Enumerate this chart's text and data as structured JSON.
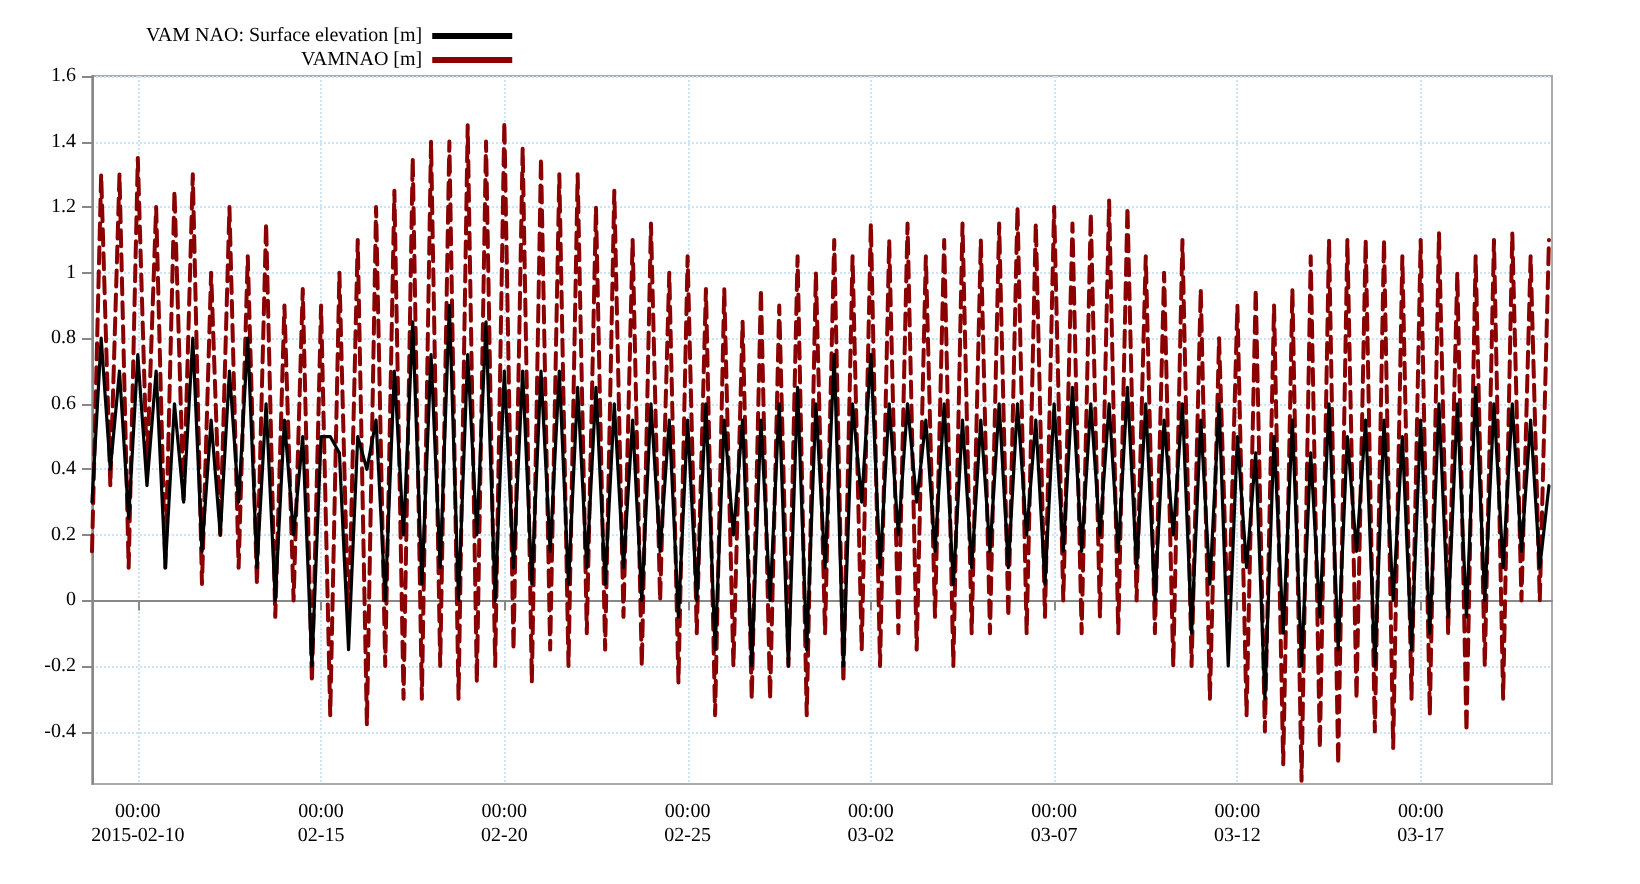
{
  "chart_data": {
    "type": "line",
    "legend": "top left",
    "grid": true,
    "marker": "none",
    "xlim": [
      "2015-02-08T18:00",
      "2015-03-20T14:00"
    ],
    "xticks": [
      {
        "value": "2015-02-10",
        "label": "00:00\n2015-02-10"
      },
      {
        "value": "2015-02-15",
        "label": "00:00\n02-15"
      },
      {
        "value": "2015-02-20",
        "label": "00:00\n02-20"
      },
      {
        "value": "2015-02-25",
        "label": "00:00\n02-25"
      },
      {
        "value": "2015-03-02",
        "label": "00:00\n03-02"
      },
      {
        "value": "2015-03-07",
        "label": "00:00\n03-07"
      },
      {
        "value": "2015-03-12",
        "label": "00:00\n03-12"
      },
      {
        "value": "2015-03-17",
        "label": "00:00\n03-17"
      }
    ],
    "ylim": [
      -0.56,
      1.6
    ],
    "yticks": [
      -0.4,
      -0.2,
      0.0,
      0.2,
      0.4,
      0.6,
      0.8,
      1.0,
      1.2,
      1.4,
      1.6
    ],
    "x": [
      "2015-02-08T18:00",
      "2015-02-09T00:00",
      "2015-02-09T06:00",
      "2015-02-09T12:00",
      "2015-02-09T18:00",
      "2015-02-10T00:00",
      "2015-02-10T06:00",
      "2015-02-10T12:00",
      "2015-02-10T18:00",
      "2015-02-11T00:00",
      "2015-02-11T06:00",
      "2015-02-11T12:00",
      "2015-02-11T18:00",
      "2015-02-12T00:00",
      "2015-02-12T06:00",
      "2015-02-12T12:00",
      "2015-02-12T18:00",
      "2015-02-13T00:00",
      "2015-02-13T06:00",
      "2015-02-13T12:00",
      "2015-02-13T18:00",
      "2015-02-14T00:00",
      "2015-02-14T06:00",
      "2015-02-14T12:00",
      "2015-02-14T18:00",
      "2015-02-15T00:00",
      "2015-02-15T06:00",
      "2015-02-15T12:00",
      "2015-02-15T18:00",
      "2015-02-16T00:00",
      "2015-02-16T06:00",
      "2015-02-16T12:00",
      "2015-02-16T18:00",
      "2015-02-17T00:00",
      "2015-02-17T06:00",
      "2015-02-17T12:00",
      "2015-02-17T18:00",
      "2015-02-18T00:00",
      "2015-02-18T06:00",
      "2015-02-18T12:00",
      "2015-02-18T18:00",
      "2015-02-19T00:00",
      "2015-02-19T06:00",
      "2015-02-19T12:00",
      "2015-02-19T18:00",
      "2015-02-20T00:00",
      "2015-02-20T06:00",
      "2015-02-20T12:00",
      "2015-02-20T18:00",
      "2015-02-21T00:00",
      "2015-02-21T06:00",
      "2015-02-21T12:00",
      "2015-02-21T18:00",
      "2015-02-22T00:00",
      "2015-02-22T06:00",
      "2015-02-22T12:00",
      "2015-02-22T18:00",
      "2015-02-23T00:00",
      "2015-02-23T06:00",
      "2015-02-23T12:00",
      "2015-02-23T18:00",
      "2015-02-24T00:00",
      "2015-02-24T06:00",
      "2015-02-24T12:00",
      "2015-02-24T18:00",
      "2015-02-25T00:00",
      "2015-02-25T06:00",
      "2015-02-25T12:00",
      "2015-02-25T18:00",
      "2015-02-26T00:00",
      "2015-02-26T06:00",
      "2015-02-26T12:00",
      "2015-02-26T18:00",
      "2015-02-27T00:00",
      "2015-02-27T06:00",
      "2015-02-27T12:00",
      "2015-02-27T18:00",
      "2015-02-28T00:00",
      "2015-02-28T06:00",
      "2015-02-28T12:00",
      "2015-02-28T18:00",
      "2015-03-01T00:00",
      "2015-03-01T06:00",
      "2015-03-01T12:00",
      "2015-03-01T18:00",
      "2015-03-02T00:00",
      "2015-03-02T06:00",
      "2015-03-02T12:00",
      "2015-03-02T18:00",
      "2015-03-03T00:00",
      "2015-03-03T06:00",
      "2015-03-03T12:00",
      "2015-03-03T18:00",
      "2015-03-04T00:00",
      "2015-03-04T06:00",
      "2015-03-04T12:00",
      "2015-03-04T18:00",
      "2015-03-05T00:00",
      "2015-03-05T06:00",
      "2015-03-05T12:00",
      "2015-03-05T18:00",
      "2015-03-06T00:00",
      "2015-03-06T06:00",
      "2015-03-06T12:00",
      "2015-03-06T18:00",
      "2015-03-07T00:00",
      "2015-03-07T06:00",
      "2015-03-07T12:00",
      "2015-03-07T18:00",
      "2015-03-08T00:00",
      "2015-03-08T06:00",
      "2015-03-08T12:00",
      "2015-03-08T18:00",
      "2015-03-09T00:00",
      "2015-03-09T06:00",
      "2015-03-09T12:00",
      "2015-03-09T18:00",
      "2015-03-10T00:00",
      "2015-03-10T06:00",
      "2015-03-10T12:00",
      "2015-03-10T18:00",
      "2015-03-11T00:00",
      "2015-03-11T06:00",
      "2015-03-11T12:00",
      "2015-03-11T18:00",
      "2015-03-12T00:00",
      "2015-03-12T06:00",
      "2015-03-12T12:00",
      "2015-03-12T18:00",
      "2015-03-13T00:00",
      "2015-03-13T06:00",
      "2015-03-13T12:00",
      "2015-03-13T18:00",
      "2015-03-14T00:00",
      "2015-03-14T06:00",
      "2015-03-14T12:00",
      "2015-03-14T18:00",
      "2015-03-15T00:00",
      "2015-03-15T06:00",
      "2015-03-15T12:00",
      "2015-03-15T18:00",
      "2015-03-16T00:00",
      "2015-03-16T06:00",
      "2015-03-16T12:00",
      "2015-03-16T18:00",
      "2015-03-17T00:00",
      "2015-03-17T06:00",
      "2015-03-17T12:00",
      "2015-03-17T18:00",
      "2015-03-18T00:00",
      "2015-03-18T06:00",
      "2015-03-18T12:00",
      "2015-03-18T18:00",
      "2015-03-19T00:00",
      "2015-03-19T06:00",
      "2015-03-19T12:00",
      "2015-03-19T18:00",
      "2015-03-20T00:00",
      "2015-03-20T06:00",
      "2015-03-20T12:00"
    ],
    "series": [
      {
        "name": "VAM NAO: Surface elevation [m]",
        "color": "#000000",
        "line_style": "solid",
        "values": [
          0.3,
          0.8,
          0.4,
          0.7,
          0.25,
          0.75,
          0.35,
          0.7,
          0.1,
          0.6,
          0.3,
          0.8,
          0.15,
          0.55,
          0.2,
          0.7,
          0.3,
          0.8,
          0.1,
          0.6,
          0.0,
          0.55,
          0.2,
          0.5,
          -0.2,
          0.5,
          0.5,
          0.45,
          -0.15,
          0.5,
          0.4,
          0.55,
          0.0,
          0.7,
          0.2,
          0.85,
          0.05,
          0.75,
          0.1,
          0.9,
          0.0,
          0.75,
          0.2,
          0.85,
          0.0,
          0.7,
          0.1,
          0.7,
          0.05,
          0.7,
          0.15,
          0.7,
          0.05,
          0.65,
          0.1,
          0.65,
          0.05,
          0.6,
          0.1,
          0.55,
          0.0,
          0.6,
          0.15,
          0.55,
          -0.05,
          0.55,
          0.0,
          0.6,
          -0.15,
          0.55,
          0.2,
          0.55,
          -0.2,
          0.55,
          0.0,
          0.6,
          -0.2,
          0.65,
          -0.15,
          0.6,
          0.1,
          0.75,
          -0.2,
          0.6,
          0.3,
          0.75,
          0.1,
          0.6,
          0.2,
          0.6,
          0.3,
          0.55,
          0.15,
          0.6,
          0.05,
          0.55,
          0.1,
          0.55,
          0.15,
          0.6,
          0.1,
          0.6,
          0.2,
          0.55,
          0.05,
          0.6,
          0.15,
          0.65,
          0.15,
          0.6,
          0.2,
          0.6,
          0.15,
          0.65,
          0.1,
          0.6,
          0.0,
          0.55,
          0.2,
          0.6,
          -0.1,
          0.55,
          0.05,
          0.6,
          -0.2,
          0.5,
          0.1,
          0.45,
          -0.3,
          0.5,
          -0.1,
          0.55,
          -0.2,
          0.45,
          -0.05,
          0.6,
          -0.15,
          0.5,
          0.15,
          0.55,
          -0.2,
          0.55,
          0.0,
          0.5,
          -0.15,
          0.55,
          -0.1,
          0.6,
          -0.05,
          0.6,
          -0.05,
          0.65,
          0.0,
          0.6,
          0.1,
          0.6,
          0.15,
          0.55,
          0.1,
          0.35
        ]
      },
      {
        "name": "VAMNAO [m]",
        "color": "#8b0000",
        "line_style": "dashed",
        "values": [
          0.15,
          1.3,
          0.35,
          1.3,
          0.1,
          1.35,
          0.4,
          1.2,
          0.1,
          1.25,
          0.3,
          1.3,
          0.05,
          1.0,
          0.2,
          1.2,
          0.1,
          1.05,
          0.05,
          1.15,
          -0.05,
          0.9,
          0.0,
          0.95,
          -0.25,
          0.9,
          -0.35,
          1.0,
          -0.1,
          1.1,
          -0.38,
          1.2,
          -0.2,
          1.25,
          -0.3,
          1.35,
          -0.3,
          1.4,
          -0.2,
          1.4,
          -0.3,
          1.45,
          -0.25,
          1.4,
          -0.2,
          1.46,
          -0.15,
          1.38,
          -0.25,
          1.35,
          -0.15,
          1.3,
          -0.2,
          1.3,
          -0.1,
          1.2,
          -0.15,
          1.25,
          -0.05,
          1.1,
          -0.2,
          1.15,
          0.0,
          1.0,
          -0.25,
          1.05,
          -0.1,
          0.95,
          -0.35,
          0.95,
          -0.2,
          0.85,
          -0.3,
          0.95,
          -0.3,
          0.9,
          -0.2,
          1.05,
          -0.35,
          1.0,
          -0.1,
          1.1,
          -0.25,
          1.05,
          -0.15,
          1.15,
          -0.2,
          1.1,
          -0.1,
          1.15,
          -0.15,
          1.05,
          -0.05,
          1.1,
          -0.2,
          1.15,
          -0.1,
          1.1,
          -0.1,
          1.15,
          -0.05,
          1.2,
          -0.1,
          1.15,
          -0.05,
          1.2,
          0.0,
          1.15,
          -0.1,
          1.18,
          -0.05,
          1.22,
          -0.1,
          1.2,
          0.0,
          1.05,
          -0.1,
          1.0,
          -0.2,
          1.1,
          -0.2,
          0.95,
          -0.3,
          0.8,
          -0.1,
          0.9,
          -0.35,
          0.95,
          -0.4,
          0.9,
          -0.5,
          0.95,
          -0.55,
          1.05,
          -0.45,
          1.1,
          -0.5,
          1.1,
          -0.3,
          1.1,
          -0.4,
          1.1,
          -0.45,
          1.05,
          -0.3,
          1.1,
          -0.35,
          1.12,
          -0.1,
          1.0,
          -0.4,
          1.05,
          -0.2,
          1.1,
          -0.3,
          1.12,
          0.0,
          1.05,
          0.0,
          1.1
        ]
      }
    ]
  }
}
